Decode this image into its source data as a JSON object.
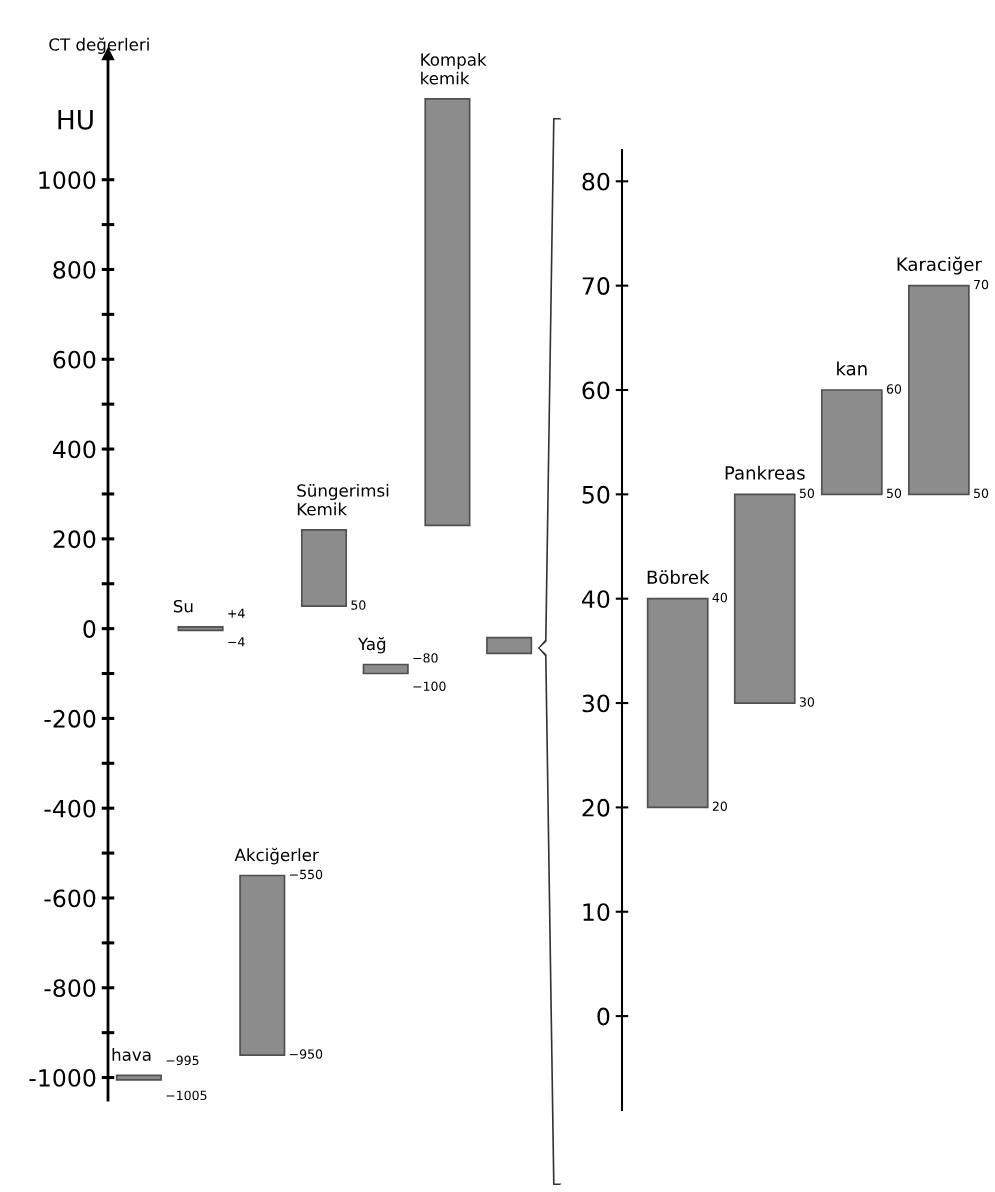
{
  "chart_data": [
    {
      "type": "bar",
      "ylabel": "CT değerleri",
      "categories": [
        null,
        null,
        null,
        null,
        null,
        null,
        null
      ],
      "color": "#8c8c8c",
      "base": [
        -1005,
        -4,
        -950,
        50,
        -100,
        230,
        -55
      ],
      "values": [
        10,
        8,
        400,
        170,
        20,
        950,
        35
      ],
      "ylim": [
        -1050,
        1280
      ],
      "yticks": [
        -1000,
        {
          "value": -900,
          "label": null
        },
        -800,
        {
          "value": -700,
          "label": null
        },
        -600,
        {
          "value": -500,
          "label": null
        },
        -400,
        {
          "value": -300,
          "label": null
        },
        -200,
        {
          "value": -100,
          "label": null
        },
        0,
        {
          "value": 100,
          "label": null
        },
        200,
        {
          "value": 300,
          "label": null
        },
        400,
        {
          "value": 500,
          "label": null
        },
        600,
        {
          "value": 700,
          "label": null
        },
        800,
        {
          "value": 900,
          "label": null
        },
        1000
      ],
      "tick_labels": "y",
      "annotations": [
        "HU",
        "Su",
        "+4",
        "−4",
        "hava",
        "−995",
        "−1005",
        "Akciğerler",
        "−550",
        "−950",
        "Süngerimsi\nKemik",
        "50",
        "Kompak\nkemik",
        "Yağ",
        "−80",
        "−100"
      ]
    },
    {
      "type": "bar",
      "categories": [
        "Böbrek",
        "Pankreas",
        "kan",
        "Karaciğer"
      ],
      "base": [
        20,
        30,
        50,
        50
      ],
      "values": [
        20,
        20,
        10,
        20
      ],
      "color": "#8c8c8c",
      "ylim": [
        -9,
        83
      ],
      "yticks": [
        0,
        10,
        20,
        30,
        40,
        50,
        60,
        70,
        80
      ],
      "tick_labels": "y",
      "annotations": [
        {
          "text": "40",
          "x": "Böbrek",
          "y": 40
        },
        {
          "text": "20",
          "x": "Böbrek",
          "y": 20
        },
        {
          "text": "50",
          "x": "Pankreas",
          "y": 50
        },
        {
          "text": "30",
          "x": "Pankreas",
          "y": 30
        },
        {
          "text": "60",
          "x": "kan",
          "y": 60
        },
        {
          "text": "50",
          "x": "kan",
          "y": 50
        },
        {
          "text": "70",
          "x": "Karaciğer",
          "y": 70
        },
        {
          "text": "50",
          "x": "Karaciğer",
          "y": 50
        }
      ]
    }
  ]
}
